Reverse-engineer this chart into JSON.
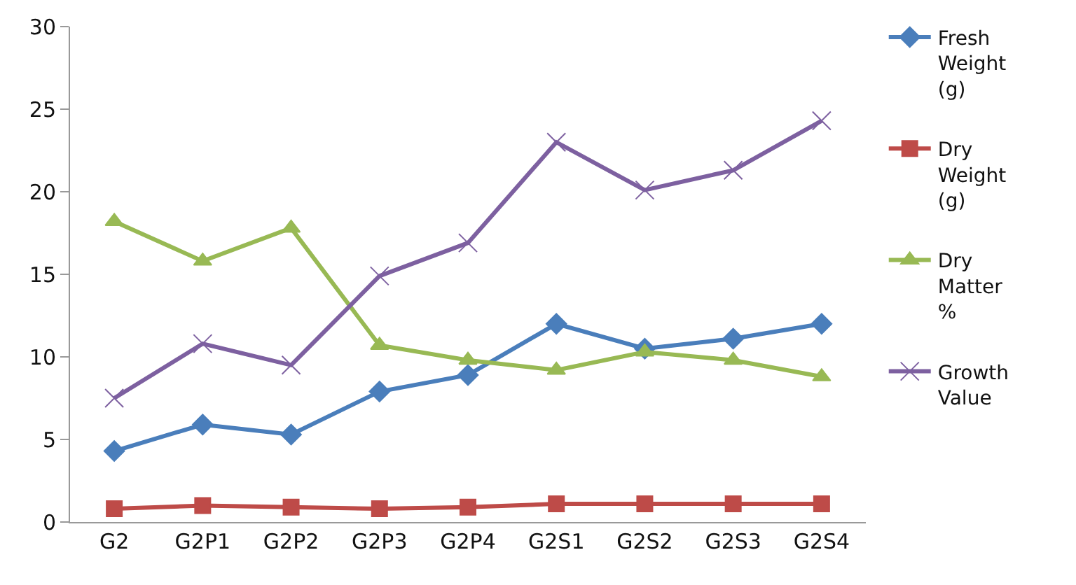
{
  "chart_data": {
    "type": "line",
    "categories": [
      "G2",
      "G2P1",
      "G2P2",
      "G2P3",
      "G2P4",
      "G2S1",
      "G2S2",
      "G2S3",
      "G2S4"
    ],
    "ylim": [
      0,
      30
    ],
    "yticks": [
      0,
      5,
      10,
      15,
      20,
      25,
      30
    ],
    "grid": false,
    "legend": "right",
    "series": [
      {
        "name": "Fresh Weight (g)",
        "color": "#4a7ebb",
        "marker": "diamond",
        "values": [
          4.3,
          5.9,
          5.3,
          7.9,
          8.9,
          12.0,
          10.5,
          11.1,
          12.0
        ]
      },
      {
        "name": "Dry Weight (g)",
        "color": "#be4b48",
        "marker": "square",
        "values": [
          0.8,
          1.0,
          0.9,
          0.8,
          0.9,
          1.1,
          1.1,
          1.1,
          1.1
        ]
      },
      {
        "name": "Dry Matter %",
        "color": "#98b954",
        "marker": "triangle",
        "values": [
          18.2,
          15.8,
          17.8,
          10.7,
          9.8,
          9.2,
          10.3,
          9.8,
          8.8
        ]
      },
      {
        "name": "Growth Value",
        "color": "#7d60a0",
        "marker": "cross",
        "values": [
          7.5,
          10.8,
          9.5,
          14.9,
          16.9,
          23.0,
          20.1,
          21.3,
          24.3
        ]
      }
    ]
  }
}
